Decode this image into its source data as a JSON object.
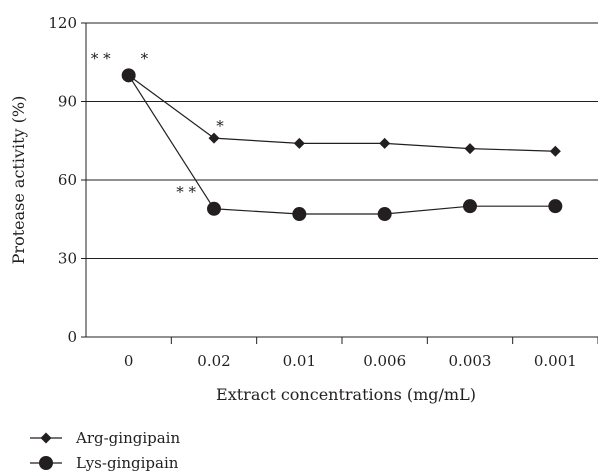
{
  "chart_data": {
    "type": "line",
    "categories": [
      "0",
      "0.02",
      "0.01",
      "0.006",
      "0.003",
      "0.001"
    ],
    "series": [
      {
        "name": "Arg-gingipain",
        "marker": "diamond",
        "values": [
          100,
          76,
          74,
          74,
          72,
          71
        ]
      },
      {
        "name": "Lys-gingipain",
        "marker": "circle",
        "values": [
          100,
          49,
          47,
          47,
          50,
          50
        ]
      }
    ],
    "xlabel": "Extract concentrations (mg/mL)",
    "ylabel": "Protease activity (%)",
    "ylim": [
      0,
      120
    ],
    "yticks": [
      "0",
      "30",
      "60",
      "90",
      "120"
    ],
    "grid": "horizontal",
    "legend_position": "bottom-left",
    "annotations": [
      {
        "text": "* *",
        "series": 1,
        "index": 0
      },
      {
        "text": "*",
        "series": 0,
        "index": 0
      },
      {
        "text": "*",
        "series": 0,
        "index": 1
      },
      {
        "text": "* *",
        "series": 1,
        "index": 1
      }
    ],
    "colors": {
      "line": "#231f20",
      "grid": "#231f20"
    }
  }
}
